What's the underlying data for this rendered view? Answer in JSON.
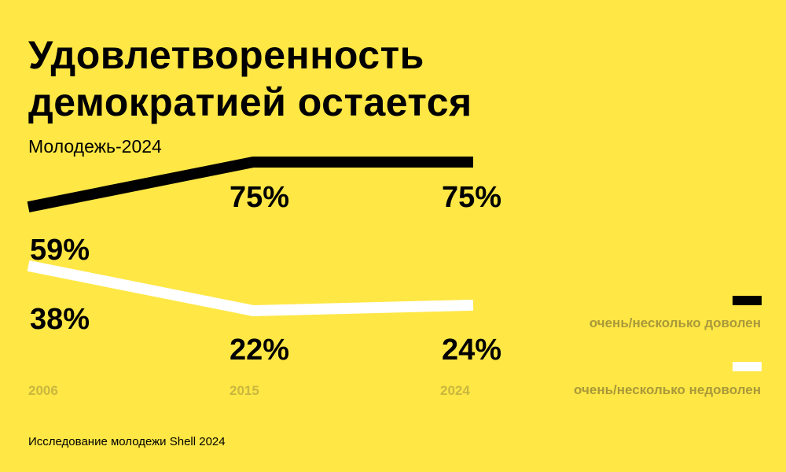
{
  "title_line1": "Удовлетворенность",
  "title_line2": "демократией остается",
  "subtitle": "Молодежь-2024",
  "source": "Исследование молодежи Shell 2024",
  "chart_data": {
    "type": "line",
    "x": [
      "2006",
      "2015",
      "2024"
    ],
    "series": [
      {
        "name": "очень/несколько доволен",
        "values": [
          59,
          75,
          75
        ],
        "color": "#000000",
        "labels": [
          "59%",
          "75%",
          "75%"
        ]
      },
      {
        "name": "очень/несколько недоволен",
        "values": [
          38,
          22,
          24
        ],
        "color": "#FFFFFF",
        "labels": [
          "38%",
          "22%",
          "24%"
        ]
      }
    ],
    "legend_position": "right",
    "grid": false
  }
}
